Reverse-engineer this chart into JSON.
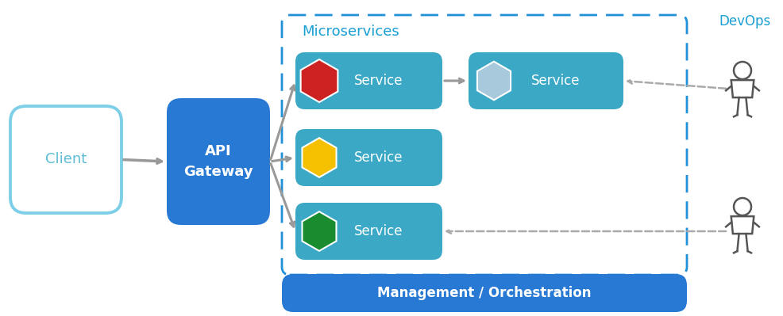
{
  "bg_color": "#ffffff",
  "teal_box_color": "#3BA8C5",
  "blue_gateway_color": "#2779D4",
  "blue_orch_color": "#2779D4",
  "client_border_color": "#7DCFE8",
  "client_text_color": "#5BBCD4",
  "dashed_border_color": "#2090D8",
  "devops_text_color": "#1A9FD4",
  "arrow_color": "#999999",
  "hex_red": "#CC2222",
  "hex_yellow": "#F5C000",
  "hex_green": "#1A8C30",
  "hex_light_blue": "#A8C8DC",
  "service_text": "Service",
  "gateway_text": "API\nGateway",
  "client_text": "Client",
  "microservices_label": "Microservices",
  "devops_label": "DevOps",
  "orch_text": "Management / Orchestration",
  "figw": 9.87,
  "figh": 3.99
}
